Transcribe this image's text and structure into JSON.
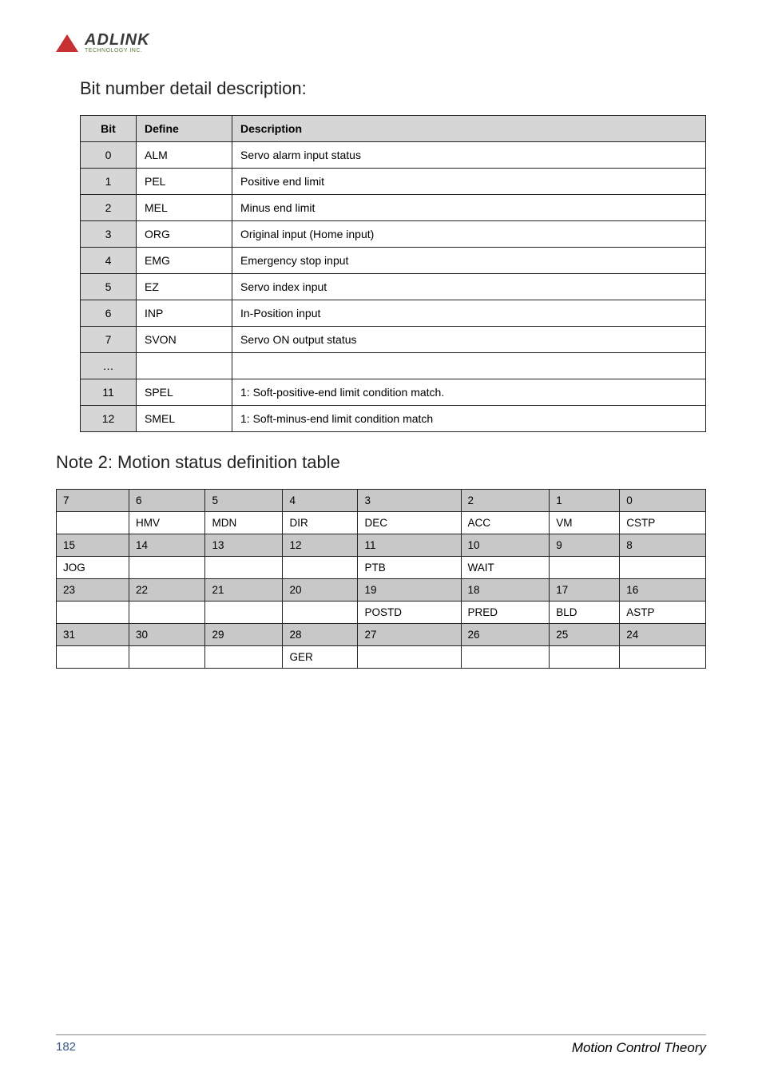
{
  "logo": {
    "brand": "ADLINK",
    "sub": "TECHNOLOGY INC."
  },
  "section1": {
    "title": "Bit number detail description:",
    "headers": [
      "Bit",
      "Define",
      "Description"
    ],
    "rows": [
      {
        "bit": "0",
        "define": "ALM",
        "desc": "Servo alarm input status"
      },
      {
        "bit": "1",
        "define": "PEL",
        "desc": "Positive end limit"
      },
      {
        "bit": "2",
        "define": "MEL",
        "desc": "Minus end limit"
      },
      {
        "bit": "3",
        "define": "ORG",
        "desc": "Original input (Home input)"
      },
      {
        "bit": "4",
        "define": "EMG",
        "desc": "Emergency stop input"
      },
      {
        "bit": "5",
        "define": "EZ",
        "desc": "Servo index input"
      },
      {
        "bit": "6",
        "define": "INP",
        "desc": "In-Position input"
      },
      {
        "bit": "7",
        "define": "SVON",
        "desc": "Servo ON output status"
      },
      {
        "bit": "…",
        "define": "",
        "desc": ""
      },
      {
        "bit": "11",
        "define": "SPEL",
        "desc": "1: Soft-positive-end limit condition match."
      },
      {
        "bit": "12",
        "define": "SMEL",
        "desc": "1: Soft-minus-end limit condition match"
      }
    ]
  },
  "section2": {
    "title": "Note 2:  Motion status definition table",
    "rows": [
      {
        "type": "header",
        "cells": [
          "7",
          "6",
          "5",
          "4",
          "3",
          "2",
          "1",
          "0"
        ]
      },
      {
        "type": "data",
        "cells": [
          "",
          "HMV",
          "MDN",
          "DIR",
          "DEC",
          "ACC",
          "VM",
          "CSTP"
        ]
      },
      {
        "type": "header",
        "cells": [
          "15",
          "14",
          "13",
          "12",
          "11",
          "10",
          "9",
          "8"
        ]
      },
      {
        "type": "data",
        "cells": [
          "JOG",
          "",
          "",
          "",
          "PTB",
          "WAIT",
          "",
          ""
        ]
      },
      {
        "type": "header",
        "cells": [
          "23",
          "22",
          "21",
          "20",
          "19",
          "18",
          "17",
          "16"
        ]
      },
      {
        "type": "data",
        "cells": [
          "",
          "",
          "",
          "",
          "POSTD",
          "PRED",
          "BLD",
          "ASTP"
        ]
      },
      {
        "type": "header",
        "cells": [
          "31",
          "30",
          "29",
          "28",
          "27",
          "26",
          "25",
          "24"
        ]
      },
      {
        "type": "data",
        "cells": [
          "",
          "",
          "",
          "GER",
          "",
          "",
          "",
          ""
        ]
      }
    ]
  },
  "footer": {
    "page": "182",
    "section": "Motion Control Theory"
  }
}
